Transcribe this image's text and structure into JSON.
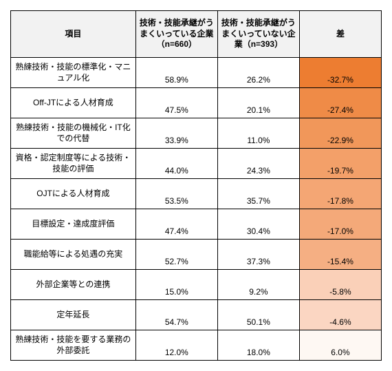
{
  "table": {
    "columns": [
      "項目",
      "技術・技能承継がうまくいっている企業（n=660）",
      "技術・技能承継がうまくいっていない企業（n=393）",
      "差"
    ],
    "header_bg": "#f2f2f2",
    "border_color": "#000000",
    "rows": [
      {
        "label": "熟練技術・技能の標準化・マニュアル化",
        "v1": "58.9%",
        "v2": "26.2%",
        "diff": "-32.7%",
        "diff_bg": "#ed7d31"
      },
      {
        "label": "Off-JTによる人材育成",
        "v1": "47.5%",
        "v2": "20.1%",
        "diff": "-27.4%",
        "diff_bg": "#ef8b47"
      },
      {
        "label": "熟練技術・技能の機械化・IT化での代替",
        "v1": "33.9%",
        "v2": "11.0%",
        "diff": "-22.9%",
        "diff_bg": "#f1975a"
      },
      {
        "label": "資格・認定制度等による技術・技能の評価",
        "v1": "44.0%",
        "v2": "24.3%",
        "diff": "-19.7%",
        "diff_bg": "#f3a069"
      },
      {
        "label": "OJTによる人材育成",
        "v1": "53.5%",
        "v2": "35.7%",
        "diff": "-17.8%",
        "diff_bg": "#f4a674"
      },
      {
        "label": "目標設定・達成度評価",
        "v1": "47.4%",
        "v2": "30.4%",
        "diff": "-17.0%",
        "diff_bg": "#f4a979"
      },
      {
        "label": "職能給等による処遇の充実",
        "v1": "52.7%",
        "v2": "37.3%",
        "diff": "-15.4%",
        "diff_bg": "#f5af83"
      },
      {
        "label": "外部企業等との連携",
        "v1": "15.0%",
        "v2": "9.2%",
        "diff": "-5.8%",
        "diff_bg": "#fad0b8"
      },
      {
        "label": "定年延長",
        "v1": "54.7%",
        "v2": "50.1%",
        "diff": "-4.6%",
        "diff_bg": "#fbd6c2"
      },
      {
        "label": "熟練技術・技能を要する業務の外部委託",
        "v1": "12.0%",
        "v2": "18.0%",
        "diff": "6.0%",
        "diff_bg": "#fef8f3"
      }
    ]
  }
}
